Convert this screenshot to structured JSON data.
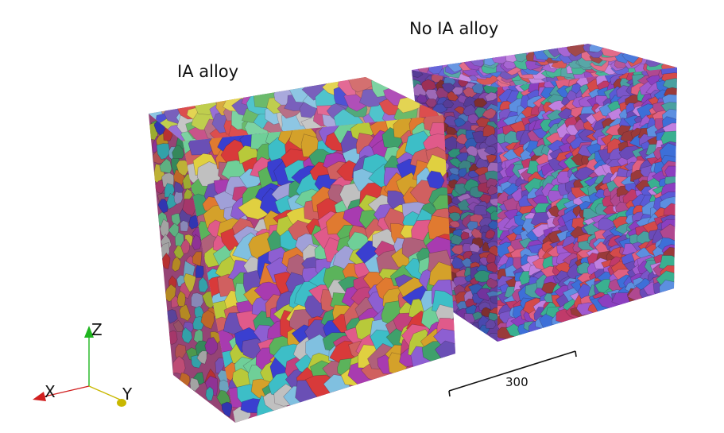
{
  "labels": {
    "ia_alloy": "IA alloy",
    "no_ia_alloy": "No IA alloy"
  },
  "axes": {
    "x": "X",
    "y": "Y",
    "z": "Z",
    "x_color": "#d11f1f",
    "y_color": "#c9b800",
    "z_color": "#1fb51f"
  },
  "scale_bar": {
    "value": "300"
  },
  "palettes": {
    "ia": [
      "#c2417d",
      "#6a4fb5",
      "#3a3fd0",
      "#d4a12a",
      "#b8c93a",
      "#3fa06b",
      "#e05a8a",
      "#8d5fd2",
      "#c0c0c0",
      "#d06060",
      "#3dbec7",
      "#a83bb0",
      "#e0d040",
      "#5bb35b",
      "#e07a30",
      "#a0a0d8",
      "#b0607a",
      "#6fcf98",
      "#d83a3a",
      "#80c0e0"
    ],
    "no_ia": [
      "#8b3fc0",
      "#5a5ad6",
      "#c03a6a",
      "#3d6fd8",
      "#d44a4a",
      "#a05ad0",
      "#4aa0a0",
      "#b04890",
      "#6a4ab8",
      "#e06080",
      "#5c8fe0",
      "#9a3a3a",
      "#3ab090",
      "#c080e0",
      "#7a56c8"
    ]
  }
}
